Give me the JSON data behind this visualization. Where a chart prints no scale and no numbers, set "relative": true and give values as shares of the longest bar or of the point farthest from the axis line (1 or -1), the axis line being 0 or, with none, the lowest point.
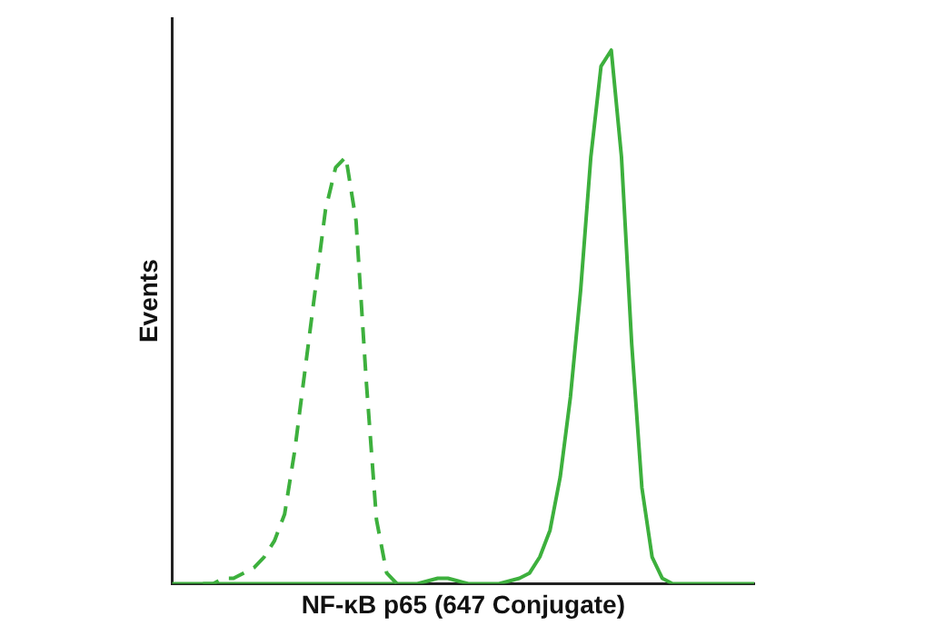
{
  "chart_data": {
    "type": "line",
    "relative": true,
    "xlabel": "NF-κB p65 (647 Conjugate)",
    "ylabel": "Events",
    "grid": false,
    "legend": false,
    "marker": "none",
    "categories": [
      null,
      null,
      null,
      null,
      null,
      null,
      null,
      null,
      null,
      null,
      null,
      null,
      null,
      null,
      null,
      null,
      null,
      null,
      null,
      null,
      null,
      null,
      null,
      null,
      null,
      null,
      null,
      null,
      null,
      null,
      null,
      null,
      null,
      null,
      null,
      null,
      null,
      null,
      null,
      null,
      null,
      null,
      null,
      null,
      null,
      null,
      null,
      null,
      null,
      null,
      null,
      null,
      null,
      null,
      null,
      null,
      null,
      null
    ],
    "series": [
      {
        "color": "#3db03d",
        "line_style": "dashed",
        "values": [
          null,
          null,
          null,
          0,
          0,
          0.01,
          0.01,
          0.02,
          0.03,
          0.05,
          0.08,
          0.13,
          0.25,
          0.4,
          0.55,
          0.7,
          0.78,
          0.8,
          0.68,
          0.38,
          0.12,
          0.02,
          0,
          null,
          null,
          null,
          null,
          null,
          null,
          null,
          null,
          null,
          null,
          null,
          null,
          null,
          null,
          null,
          null,
          null,
          null,
          null,
          null,
          null,
          null,
          null,
          null,
          null,
          null,
          null,
          null,
          null,
          null,
          null,
          null,
          null,
          null,
          null
        ]
      },
      {
        "color": "#3db03d",
        "line_style": "solid",
        "values": [
          0,
          0,
          0,
          0,
          0,
          0,
          0,
          0,
          0,
          0,
          0,
          0,
          0,
          0,
          0,
          0,
          0,
          0,
          0,
          0,
          0,
          0,
          0,
          0,
          0,
          0.005,
          0.01,
          0.01,
          0.005,
          0,
          0,
          0,
          0,
          0.005,
          0.01,
          0.02,
          0.05,
          0.1,
          0.2,
          0.35,
          0.55,
          0.8,
          0.97,
          1,
          0.8,
          0.45,
          0.18,
          0.05,
          0.01,
          0,
          0,
          0,
          0,
          0,
          0,
          0,
          0,
          0
        ]
      }
    ]
  }
}
